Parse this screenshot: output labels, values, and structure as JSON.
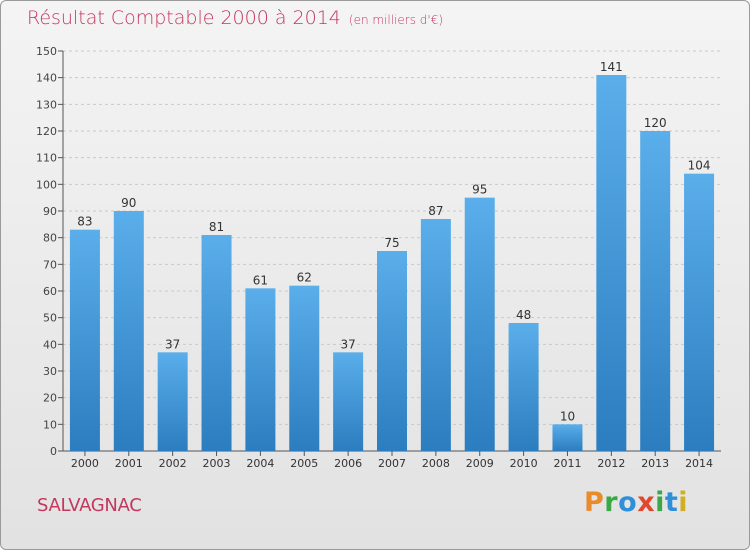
{
  "title": "Résultat Comptable 2000 à 2014",
  "unit_note": "(en milliers d'€)",
  "town": "SALVAGNAC",
  "logo": {
    "text": "Proxiti",
    "letters": [
      {
        "ch": "P",
        "color": "#e98a2b"
      },
      {
        "ch": "r",
        "color": "#3aa843"
      },
      {
        "ch": "o",
        "color": "#2f8fd8"
      },
      {
        "ch": "x",
        "color": "#e0482e"
      },
      {
        "ch": "i",
        "color": "#3aa843"
      },
      {
        "ch": "t",
        "color": "#2f8fd8"
      },
      {
        "ch": "i",
        "color": "#d0b020"
      }
    ]
  },
  "colors": {
    "bar_light": "#5aaeea",
    "bar_dark": "#2c7dbf",
    "title": "#c4375f"
  },
  "chart_data": {
    "type": "bar",
    "title": "Résultat Comptable 2000 à 2014",
    "subtitle": "(en milliers d'€)",
    "categories": [
      "2000",
      "2001",
      "2002",
      "2003",
      "2004",
      "2005",
      "2006",
      "2007",
      "2008",
      "2009",
      "2010",
      "2011",
      "2012",
      "2013",
      "2014"
    ],
    "values": [
      83,
      90,
      37,
      81,
      61,
      62,
      37,
      75,
      87,
      95,
      48,
      10,
      141,
      120,
      104
    ],
    "ylim": [
      0,
      150
    ],
    "yticks": [
      0,
      10,
      20,
      30,
      40,
      50,
      60,
      70,
      80,
      90,
      100,
      110,
      120,
      130,
      140,
      150
    ],
    "grid": true,
    "data_labels": true
  }
}
